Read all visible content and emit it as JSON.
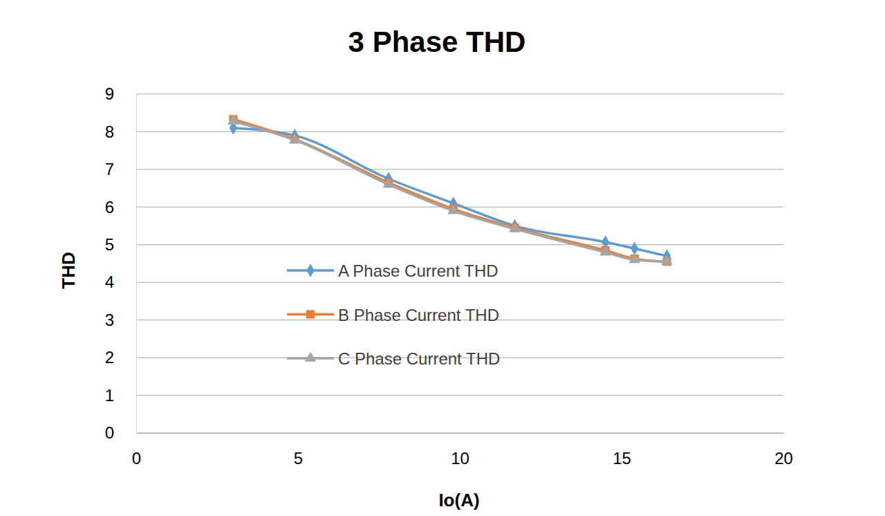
{
  "chart_data": {
    "type": "line",
    "title": "3 Phase THD",
    "x_label": "Io(A)",
    "y_label": "THD",
    "x": [
      3.0,
      4.9,
      7.8,
      9.8,
      11.7,
      14.5,
      15.4,
      16.4
    ],
    "series": [
      {
        "name": "A Phase Current THD",
        "color": "#5b9bd5",
        "marker": "diamond",
        "values": [
          8.1,
          7.9,
          6.75,
          6.1,
          5.5,
          5.07,
          4.9,
          4.7
        ]
      },
      {
        "name": "B Phase Current THD",
        "color": "#ed7d31",
        "marker": "square",
        "values": [
          8.33,
          7.8,
          6.65,
          5.95,
          5.45,
          4.85,
          4.63,
          4.55
        ]
      },
      {
        "name": "C Phase Current THD",
        "color": "#a5a5a5",
        "marker": "triangle",
        "values": [
          8.28,
          7.78,
          6.6,
          5.9,
          5.42,
          4.8,
          4.6,
          4.55
        ]
      }
    ],
    "xlim": [
      0,
      20
    ],
    "xticks": [
      0,
      5,
      10,
      15,
      20
    ],
    "ylim": [
      0,
      9
    ],
    "yticks": [
      0,
      1,
      2,
      3,
      4,
      5,
      6,
      7,
      8,
      9
    ],
    "grid": true,
    "legend": "center-left"
  }
}
